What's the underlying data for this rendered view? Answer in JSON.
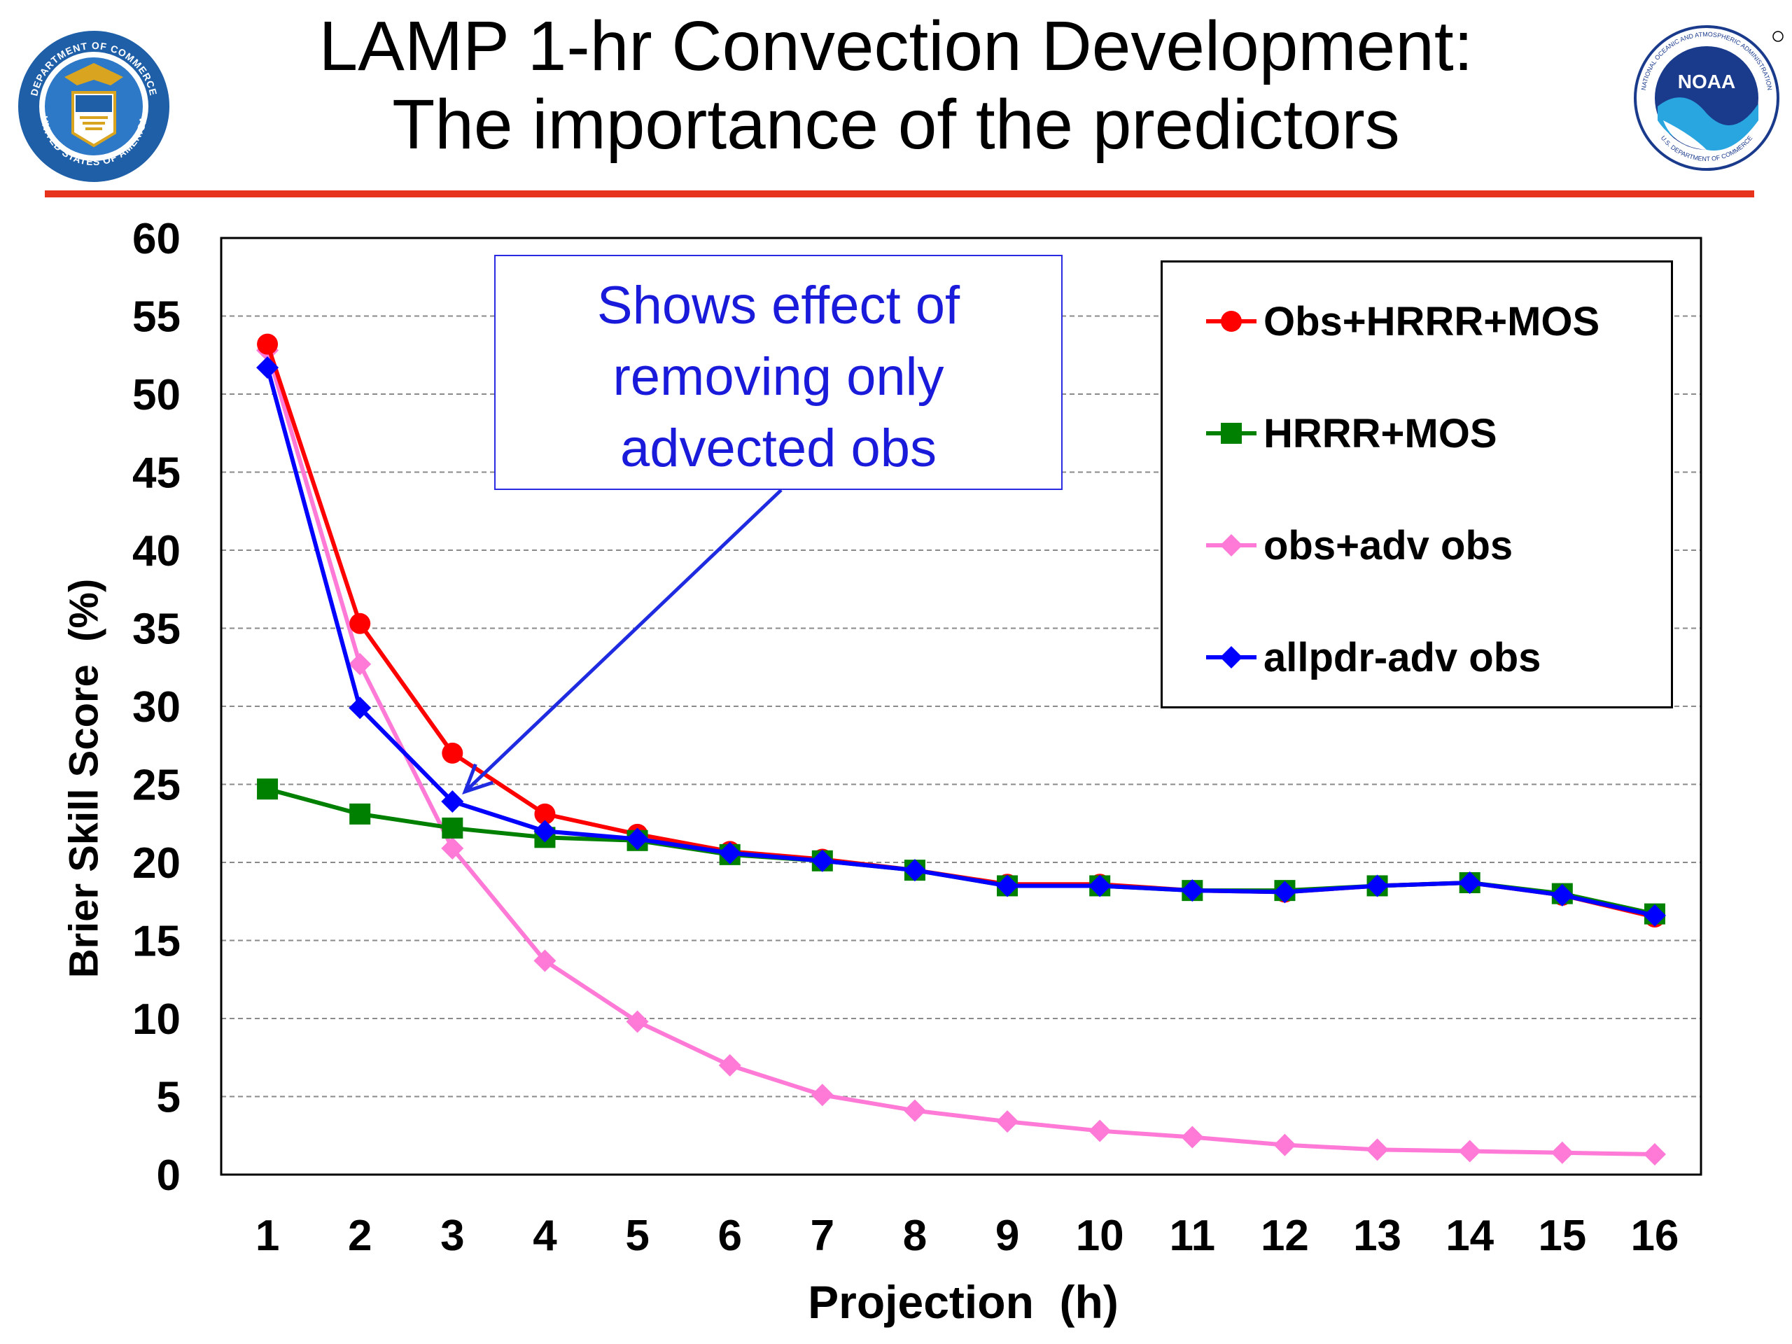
{
  "header": {
    "title_line1": "LAMP 1-hr Convection Development:",
    "title_line2": "The importance of the predictors",
    "left_seal": {
      "icon": "department-of-commerce-seal-icon",
      "text_top": "DEPARTMENT OF COMMERCE",
      "text_bottom": "UNITED STATES OF AMERICA"
    },
    "right_seal": {
      "icon": "noaa-logo-icon",
      "center_text": "NOAA",
      "text_top": "NATIONAL OCEANIC AND ATMOSPHERIC ADMINISTRATION",
      "text_bottom": "U.S. DEPARTMENT OF COMMERCE"
    },
    "accent_color": "#e8331c"
  },
  "callout": {
    "lines": [
      "Shows effect of",
      "removing only",
      "advected obs"
    ],
    "color": "#1a1adb"
  },
  "chart_data": {
    "type": "line",
    "title": "",
    "xlabel": "Projection  (h)",
    "ylabel": "Brier Skill Score  (%)",
    "x": [
      1,
      2,
      3,
      4,
      5,
      6,
      7,
      8,
      9,
      10,
      11,
      12,
      13,
      14,
      15,
      16
    ],
    "xlim": [
      0.5,
      16.5
    ],
    "ylim": [
      0,
      60
    ],
    "yticks": [
      0,
      5,
      10,
      15,
      20,
      25,
      30,
      35,
      40,
      45,
      50,
      55,
      60
    ],
    "grid": "horizontal dashed",
    "legend_position": "top-right",
    "series": [
      {
        "name": "Obs+HRRR+MOS",
        "color": "#ff0000",
        "marker": "circle",
        "values": [
          53.2,
          35.3,
          27.0,
          23.1,
          21.8,
          20.7,
          20.2,
          19.5,
          18.6,
          18.6,
          18.2,
          18.1,
          18.5,
          18.7,
          17.9,
          16.5
        ]
      },
      {
        "name": "HRRR+MOS",
        "color": "#008000",
        "marker": "square",
        "values": [
          24.7,
          23.1,
          22.2,
          21.6,
          21.4,
          20.5,
          20.1,
          19.5,
          18.5,
          18.5,
          18.2,
          18.2,
          18.5,
          18.7,
          18.0,
          16.7
        ]
      },
      {
        "name": "obs+adv obs",
        "color": "#ff7ad6",
        "marker": "diamond",
        "values": [
          52.8,
          32.7,
          20.9,
          13.7,
          9.8,
          7.0,
          5.1,
          4.1,
          3.4,
          2.8,
          2.4,
          1.9,
          1.6,
          1.5,
          1.4,
          1.3
        ]
      },
      {
        "name": "allpdr-adv obs",
        "color": "#0000ff",
        "marker": "diamond",
        "values": [
          51.7,
          29.9,
          23.9,
          22.0,
          21.5,
          20.6,
          20.1,
          19.5,
          18.5,
          18.5,
          18.2,
          18.1,
          18.5,
          18.7,
          17.9,
          16.6
        ]
      }
    ]
  }
}
